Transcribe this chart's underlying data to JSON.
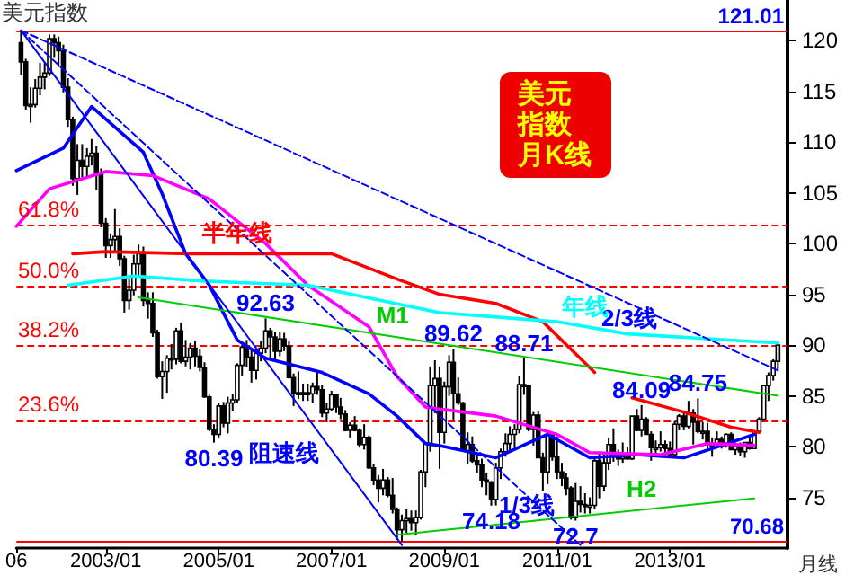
{
  "chart_data": {
    "type": "candlestick",
    "title": "美元指数",
    "xlabel": "月线",
    "color": "#000000",
    "x": [
      "2001-07",
      "2001-08",
      "2001-09",
      "2001-10",
      "2001-11",
      "2001-12",
      "2002-01",
      "2002-02",
      "2002-03",
      "2002-04",
      "2002-05",
      "2002-06",
      "2002-07",
      "2002-08",
      "2002-09",
      "2002-10",
      "2002-11",
      "2002-12",
      "2003-01",
      "2003-02",
      "2003-03",
      "2003-04",
      "2003-05",
      "2003-06",
      "2003-07",
      "2003-08",
      "2003-09",
      "2003-10",
      "2003-11",
      "2003-12",
      "2004-01",
      "2004-02",
      "2004-03",
      "2004-04",
      "2004-05",
      "2004-06",
      "2004-07",
      "2004-08",
      "2004-09",
      "2004-10",
      "2004-11",
      "2004-12",
      "2005-01",
      "2005-02",
      "2005-03",
      "2005-04",
      "2005-05",
      "2005-06",
      "2005-07",
      "2005-08",
      "2005-09",
      "2005-10",
      "2005-11",
      "2005-12",
      "2006-01",
      "2006-02",
      "2006-03",
      "2006-04",
      "2006-05",
      "2006-06",
      "2006-07",
      "2006-08",
      "2006-09",
      "2006-10",
      "2006-11",
      "2006-12",
      "2007-01",
      "2007-02",
      "2007-03",
      "2007-04",
      "2007-05",
      "2007-06",
      "2007-07",
      "2007-08",
      "2007-09",
      "2007-10",
      "2007-11",
      "2007-12",
      "2008-01",
      "2008-02",
      "2008-03",
      "2008-04",
      "2008-05",
      "2008-06",
      "2008-07",
      "2008-08",
      "2008-09",
      "2008-10",
      "2008-11",
      "2008-12",
      "2009-01",
      "2009-02",
      "2009-03",
      "2009-04",
      "2009-05",
      "2009-06",
      "2009-07",
      "2009-08",
      "2009-09",
      "2009-10",
      "2009-11",
      "2009-12",
      "2010-01",
      "2010-02",
      "2010-03",
      "2010-04",
      "2010-05",
      "2010-06",
      "2010-07",
      "2010-08",
      "2010-09",
      "2010-10",
      "2010-11",
      "2010-12",
      "2011-01",
      "2011-02",
      "2011-03",
      "2011-04",
      "2011-05",
      "2011-06",
      "2011-07",
      "2011-08",
      "2011-09",
      "2011-10",
      "2011-11",
      "2011-12",
      "2012-01",
      "2012-02",
      "2012-03",
      "2012-04",
      "2012-05",
      "2012-06",
      "2012-07",
      "2012-08",
      "2012-09",
      "2012-10",
      "2012-11",
      "2012-12",
      "2013-01",
      "2013-02",
      "2013-03",
      "2013-04",
      "2013-05",
      "2013-06",
      "2013-07",
      "2013-08",
      "2013-09",
      "2013-10",
      "2013-11",
      "2013-12",
      "2014-01",
      "2014-02",
      "2014-03",
      "2014-04",
      "2014-05",
      "2014-06",
      "2014-07",
      "2014-08",
      "2014-09",
      "2014-10",
      "2014-11",
      "2014-12"
    ],
    "ohlc": [
      [
        119.8,
        121.01,
        116.6,
        117.9
      ],
      [
        117.9,
        118.2,
        113.2,
        113.6
      ],
      [
        113.6,
        115.4,
        111.9,
        113.7
      ],
      [
        113.7,
        116.2,
        113.4,
        115.3
      ],
      [
        115.3,
        117.8,
        114.6,
        116.4
      ],
      [
        116.4,
        117.8,
        115.2,
        116.8
      ],
      [
        116.8,
        120.6,
        116.5,
        120.2
      ],
      [
        120.2,
        120.6,
        118.3,
        119.8
      ],
      [
        119.8,
        120.4,
        117.4,
        119.0
      ],
      [
        119.0,
        119.6,
        114.9,
        115.4
      ],
      [
        115.4,
        116.3,
        111.5,
        112.2
      ],
      [
        112.2,
        112.5,
        105.7,
        106.4
      ],
      [
        106.4,
        109.8,
        104.8,
        108.2
      ],
      [
        108.2,
        109.8,
        106.5,
        107.6
      ],
      [
        107.6,
        109.4,
        106.5,
        108.6
      ],
      [
        108.6,
        110.3,
        107.7,
        108.9
      ],
      [
        108.9,
        109.6,
        105.3,
        106.9
      ],
      [
        106.9,
        107.4,
        101.6,
        102.0
      ],
      [
        102.0,
        102.5,
        98.6,
        99.8
      ],
      [
        99.8,
        101.0,
        98.6,
        100.4
      ],
      [
        100.4,
        103.4,
        99.1,
        100.7
      ],
      [
        100.7,
        101.5,
        97.8,
        98.5
      ],
      [
        98.5,
        98.8,
        93.2,
        94.4
      ],
      [
        94.4,
        96.6,
        93.5,
        95.4
      ],
      [
        95.4,
        98.9,
        94.9,
        98.0
      ],
      [
        98.0,
        99.9,
        96.8,
        99.0
      ],
      [
        99.0,
        99.7,
        93.8,
        94.4
      ],
      [
        94.4,
        95.2,
        92.6,
        94.1
      ],
      [
        94.1,
        95.2,
        90.8,
        91.2
      ],
      [
        91.2,
        91.5,
        86.7,
        86.9
      ],
      [
        86.9,
        88.4,
        84.7,
        87.4
      ],
      [
        87.4,
        89.0,
        85.3,
        88.7
      ],
      [
        88.7,
        90.1,
        87.6,
        88.6
      ],
      [
        88.6,
        91.7,
        88.1,
        91.4
      ],
      [
        91.4,
        92.2,
        88.2,
        88.4
      ],
      [
        88.4,
        90.5,
        87.9,
        88.8
      ],
      [
        88.8,
        90.2,
        87.6,
        89.7
      ],
      [
        89.7,
        90.4,
        87.9,
        88.9
      ],
      [
        88.9,
        89.6,
        87.4,
        87.8
      ],
      [
        87.8,
        88.3,
        84.8,
        84.9
      ],
      [
        84.9,
        85.1,
        81.5,
        81.7
      ],
      [
        81.7,
        82.2,
        80.39,
        81.2
      ],
      [
        81.2,
        84.3,
        80.9,
        84.0
      ],
      [
        84.0,
        84.4,
        81.9,
        82.3
      ],
      [
        82.3,
        84.9,
        81.3,
        84.3
      ],
      [
        84.3,
        85.2,
        83.5,
        84.6
      ],
      [
        84.6,
        88.2,
        84.3,
        88.0
      ],
      [
        88.0,
        90.0,
        87.0,
        89.8
      ],
      [
        89.8,
        90.5,
        87.8,
        88.8
      ],
      [
        88.8,
        89.5,
        86.3,
        87.5
      ],
      [
        87.5,
        89.6,
        86.6,
        89.2
      ],
      [
        89.2,
        90.4,
        88.4,
        89.7
      ],
      [
        89.7,
        92.63,
        89.2,
        91.4
      ],
      [
        91.4,
        91.7,
        88.6,
        90.8
      ],
      [
        90.8,
        91.3,
        88.5,
        89.4
      ],
      [
        89.4,
        91.3,
        88.9,
        90.6
      ],
      [
        90.6,
        91.2,
        89.4,
        89.9
      ],
      [
        89.9,
        90.4,
        86.7,
        86.8
      ],
      [
        86.8,
        87.2,
        84.0,
        85.3
      ],
      [
        85.3,
        87.4,
        84.7,
        85.3
      ],
      [
        85.3,
        86.2,
        84.5,
        85.3
      ],
      [
        85.3,
        86.2,
        84.5,
        85.2
      ],
      [
        85.2,
        86.3,
        84.3,
        85.9
      ],
      [
        85.9,
        87.3,
        85.1,
        85.6
      ],
      [
        85.6,
        86.1,
        82.9,
        83.3
      ],
      [
        83.3,
        84.3,
        82.4,
        83.7
      ],
      [
        83.7,
        85.5,
        83.5,
        85.1
      ],
      [
        85.1,
        85.2,
        83.3,
        83.9
      ],
      [
        83.9,
        84.8,
        82.7,
        83.2
      ],
      [
        83.2,
        83.6,
        81.5,
        81.6
      ],
      [
        81.6,
        82.4,
        80.9,
        82.1
      ],
      [
        82.1,
        83.0,
        81.5,
        81.6
      ],
      [
        81.6,
        81.8,
        79.9,
        80.2
      ],
      [
        80.2,
        82.2,
        79.7,
        80.9
      ],
      [
        80.9,
        81.1,
        77.8,
        77.9
      ],
      [
        77.9,
        78.3,
        76.2,
        76.7
      ],
      [
        76.7,
        77.2,
        74.5,
        75.9
      ],
      [
        75.9,
        77.8,
        75.2,
        76.7
      ],
      [
        76.7,
        77.0,
        75.0,
        75.2
      ],
      [
        75.2,
        76.9,
        73.4,
        73.8
      ],
      [
        73.8,
        74.0,
        70.8,
        71.8
      ],
      [
        71.8,
        73.3,
        70.68,
        72.7
      ],
      [
        72.7,
        73.9,
        71.5,
        72.9
      ],
      [
        72.9,
        73.7,
        71.7,
        72.5
      ],
      [
        72.5,
        73.7,
        71.3,
        73.0
      ],
      [
        73.0,
        77.7,
        72.8,
        77.5
      ],
      [
        77.5,
        80.4,
        76.0,
        80.3
      ],
      [
        80.3,
        87.9,
        79.5,
        86.0
      ],
      [
        86.0,
        88.5,
        83.3,
        86.7
      ],
      [
        86.7,
        87.9,
        77.8,
        81.4
      ],
      [
        81.4,
        86.4,
        80.3,
        85.9
      ],
      [
        85.9,
        89.0,
        85.0,
        88.3
      ],
      [
        88.3,
        89.62,
        82.6,
        85.2
      ],
      [
        85.2,
        86.8,
        84.1,
        84.3
      ],
      [
        84.3,
        84.4,
        79.5,
        79.6
      ],
      [
        79.6,
        81.4,
        78.3,
        80.2
      ],
      [
        80.2,
        81.0,
        78.4,
        78.6
      ],
      [
        78.6,
        79.4,
        77.4,
        78.2
      ],
      [
        78.2,
        78.8,
        76.0,
        76.7
      ],
      [
        76.7,
        77.4,
        75.2,
        76.5
      ],
      [
        76.5,
        76.6,
        74.18,
        74.8
      ],
      [
        74.8,
        78.4,
        74.2,
        77.9
      ],
      [
        77.9,
        79.8,
        76.8,
        79.5
      ],
      [
        79.5,
        81.3,
        79.0,
        80.3
      ],
      [
        80.3,
        82.0,
        79.4,
        81.2
      ],
      [
        81.2,
        82.2,
        80.0,
        81.7
      ],
      [
        81.7,
        87.0,
        81.3,
        86.1
      ],
      [
        86.1,
        88.71,
        85.1,
        86.0
      ],
      [
        86.0,
        86.1,
        81.5,
        81.7
      ],
      [
        81.7,
        83.4,
        80.1,
        83.1
      ],
      [
        83.1,
        83.5,
        78.9,
        78.9
      ],
      [
        78.9,
        79.4,
        75.6,
        77.5
      ],
      [
        77.5,
        81.4,
        76.3,
        81.1
      ],
      [
        81.1,
        81.4,
        78.6,
        79.0
      ],
      [
        79.0,
        81.0,
        76.8,
        77.5
      ],
      [
        77.5,
        78.4,
        76.1,
        76.9
      ],
      [
        76.9,
        77.4,
        75.2,
        75.9
      ],
      [
        75.9,
        76.1,
        72.8,
        73.0
      ],
      [
        73.0,
        76.4,
        72.7,
        74.6
      ],
      [
        74.6,
        76.1,
        73.5,
        74.3
      ],
      [
        74.3,
        75.4,
        73.4,
        74.1
      ],
      [
        74.1,
        75.0,
        73.4,
        74.2
      ],
      [
        74.2,
        79.0,
        73.9,
        78.6
      ],
      [
        78.6,
        79.5,
        74.9,
        76.1
      ],
      [
        76.1,
        79.4,
        75.6,
        78.4
      ],
      [
        78.4,
        80.9,
        77.7,
        80.2
      ],
      [
        80.2,
        81.8,
        78.5,
        79.0
      ],
      [
        79.0,
        79.7,
        78.1,
        78.8
      ],
      [
        78.8,
        80.4,
        78.4,
        79.0
      ],
      [
        79.0,
        80.0,
        78.7,
        78.8
      ],
      [
        78.8,
        83.0,
        78.7,
        83.0
      ],
      [
        83.0,
        83.7,
        81.5,
        81.6
      ],
      [
        81.6,
        84.09,
        81.0,
        82.7
      ],
      [
        82.7,
        82.9,
        81.2,
        81.2
      ],
      [
        81.2,
        81.5,
        78.6,
        79.9
      ],
      [
        79.9,
        80.6,
        79.1,
        79.9
      ],
      [
        79.9,
        81.5,
        79.5,
        80.2
      ],
      [
        80.2,
        80.6,
        79.0,
        79.8
      ],
      [
        79.8,
        80.5,
        78.9,
        79.2
      ],
      [
        79.2,
        82.5,
        78.9,
        82.2
      ],
      [
        82.2,
        83.2,
        81.6,
        83.0
      ],
      [
        83.0,
        83.3,
        81.6,
        82.0
      ],
      [
        82.0,
        84.5,
        81.8,
        83.3
      ],
      [
        83.3,
        83.7,
        80.2,
        82.4
      ],
      [
        82.4,
        84.75,
        81.3,
        81.5
      ],
      [
        81.5,
        82.4,
        80.7,
        81.5
      ],
      [
        81.5,
        82.3,
        79.8,
        80.2
      ],
      [
        80.2,
        80.9,
        79.0,
        80.2
      ],
      [
        80.2,
        81.5,
        80.0,
        80.7
      ],
      [
        80.7,
        81.0,
        79.8,
        80.2
      ],
      [
        80.2,
        81.3,
        79.9,
        81.2
      ],
      [
        81.2,
        81.4,
        79.7,
        79.7
      ],
      [
        79.7,
        80.4,
        79.2,
        80.1
      ],
      [
        80.1,
        80.4,
        79.1,
        79.5
      ],
      [
        79.5,
        80.4,
        78.9,
        80.4
      ],
      [
        80.4,
        81.0,
        79.7,
        79.8
      ],
      [
        79.8,
        81.6,
        79.8,
        81.5
      ],
      [
        81.5,
        82.9,
        81.3,
        82.7
      ],
      [
        82.7,
        86.0,
        82.5,
        86.0
      ],
      [
        86.0,
        87.3,
        84.5,
        87.0
      ],
      [
        87.0,
        88.6,
        86.5,
        88.4
      ],
      [
        88.4,
        90.2,
        87.6,
        90.0
      ]
    ],
    "series": [
      {
        "type": "line",
        "color": "#0000ff",
        "line_style": "solid",
        "x": [
          "2001-06",
          "2002-04",
          "2002-10",
          "2003-09",
          "2004-01",
          "2004-06",
          "2004-11",
          "2005-05",
          "2005-11",
          "2006-11",
          "2007-09",
          "2008-03",
          "2008-09",
          "2008-12",
          "2009-12",
          "2010-11",
          "2011-08",
          "2012-06",
          "2013-04",
          "2013-12",
          "2014-07"
        ],
        "values": [
          107.2,
          109.4,
          113.5,
          109.0,
          104.9,
          99.0,
          95.9,
          90.5,
          88.7,
          87.3,
          85.2,
          83.0,
          80.3,
          80.1,
          78.9,
          81.2,
          78.9,
          79.2,
          78.9,
          80.1,
          81.2
        ]
      },
      {
        "type": "line",
        "color": "#ff00ff",
        "line_style": "solid",
        "x": [
          "2001-06",
          "2002-01",
          "2003-01",
          "2003-11",
          "2004-11",
          "2005-11",
          "2006-08",
          "2007-09",
          "2008-03",
          "2008-09",
          "2008-12",
          "2009-12",
          "2011-01",
          "2011-08",
          "2012-11",
          "2013-09",
          "2014-07"
        ],
        "values": [
          101.7,
          105.4,
          107.1,
          106.7,
          104.4,
          100.0,
          95.9,
          91.8,
          86.9,
          83.9,
          83.7,
          83.0,
          81.2,
          79.4,
          79.2,
          80.3,
          80.1
        ]
      },
      {
        "type": "line",
        "color": "#ff0000",
        "line_style": "solid",
        "x": [
          "2002-06",
          "2003-01",
          "2004-07",
          "2007-01",
          "2008-03",
          "2008-12",
          "2009-12",
          "2010-10",
          "2011-09",
          "2011-12",
          "2012-05",
          "2013-04",
          "2014-02",
          "2014-08"
        ],
        "values": [
          99.0,
          99.2,
          99.0,
          99.0,
          96.5,
          95.0,
          94.1,
          92.3,
          87.3,
          null,
          84.8,
          83.4,
          81.9,
          81.4
        ]
      },
      {
        "type": "line",
        "color": "#00ffff",
        "line_style": "solid",
        "x": [
          "2002-05",
          "2003-07",
          "2004-10",
          "2006-08",
          "2008-12",
          "2011-01",
          "2012-04",
          "2014-12"
        ],
        "values": [
          95.9,
          96.8,
          96.3,
          95.9,
          93.2,
          92.3,
          91.1,
          90.2
        ]
      },
      {
        "type": "line",
        "color": "#00cc00",
        "line_style": "solid",
        "x": [
          "2003-08",
          "2014-12"
        ],
        "values": [
          94.7,
          85.0
        ]
      },
      {
        "type": "line",
        "color": "#00cc00",
        "line_style": "solid",
        "x": [
          "2008-03",
          "2014-07"
        ],
        "values": [
          71.3,
          74.9
        ]
      },
      {
        "type": "line",
        "color": "#0000ff",
        "line_style": "dashed",
        "x": [
          "2001-07",
          "2014-12"
        ],
        "values": [
          121.0,
          87.5
        ]
      },
      {
        "type": "line",
        "color": "#0000ff",
        "line_style": "dashed",
        "x": [
          "2001-07",
          "2011-06"
        ],
        "values": [
          121.0,
          70.3
        ]
      },
      {
        "type": "line",
        "color": "#0000ff",
        "line_style": "solid",
        "x": [
          "2001-07",
          "2008-04"
        ],
        "values": [
          121.0,
          70.3
        ]
      }
    ],
    "ref_lines": [
      {
        "axis": "y",
        "value": 121.01,
        "label": "121.01",
        "color": "#ff0000",
        "line_style": "solid"
      },
      {
        "axis": "y",
        "value": 101.8,
        "color": "#ff0000",
        "line_style": "dashed"
      },
      {
        "axis": "y",
        "value": 95.8,
        "color": "#ff0000",
        "line_style": "dashed"
      },
      {
        "axis": "y",
        "value": 89.9,
        "color": "#ff0000",
        "line_style": "dashed"
      },
      {
        "axis": "y",
        "value": 82.6,
        "color": "#ff0000",
        "line_style": "dashed"
      },
      {
        "axis": "y",
        "value": 70.68,
        "label": "70.68",
        "color": "#ff0000",
        "line_style": "solid"
      }
    ],
    "annotations": [
      "美元指数月K线",
      "2/3线",
      "1/3线",
      "阻速线",
      {
        "text": "61.8%",
        "y": 101.8
      },
      {
        "text": "50.0%",
        "y": 95.8
      },
      {
        "text": "38.2%",
        "y": 89.9
      },
      {
        "text": "23.6%",
        "y": 82.6
      },
      {
        "text": "半年线",
        "x": "2005-05",
        "y": 99.0
      },
      {
        "text": "年线",
        "x": "2011-07",
        "y": 91.8
      },
      {
        "text": "M1",
        "x": "2008-02",
        "y": 90.9
      },
      {
        "text": "H2",
        "x": "2012-07",
        "y": 73.8
      },
      {
        "text": "92.63",
        "x": "2005-11",
        "y": 92.63
      },
      {
        "text": "80.39",
        "x": "2004-12",
        "y": 80.39
      },
      {
        "text": "89.62",
        "x": "2009-03",
        "y": 89.62
      },
      {
        "text": "88.71",
        "x": "2010-06",
        "y": 88.71
      },
      {
        "text": "84.09",
        "x": "2012-07",
        "y": 84.09
      },
      {
        "text": "84.75",
        "x": "2013-07",
        "y": 84.75
      },
      {
        "text": "74.18",
        "x": "2009-11",
        "y": 74.18
      },
      {
        "text": "72.7",
        "x": "2011-05",
        "y": 72.7
      }
    ],
    "xlim": [
      "2001-06",
      "2015-02"
    ],
    "xticks": [
      {
        "value": "2001-06",
        "label": "06"
      },
      {
        "value": "2003-01",
        "label": "2003/01"
      },
      {
        "value": "2005-01",
        "label": "2005/01"
      },
      {
        "value": "2007-01",
        "label": "2007/01"
      },
      {
        "value": "2009-01",
        "label": "2009/01"
      },
      {
        "value": "2011-01",
        "label": "2011/01"
      },
      {
        "value": "2013-01",
        "label": "2013/01"
      }
    ],
    "ylim": [
      70,
      124
    ],
    "yticks": [
      75,
      80,
      85,
      90,
      95,
      100,
      105,
      110,
      115,
      120
    ]
  }
}
